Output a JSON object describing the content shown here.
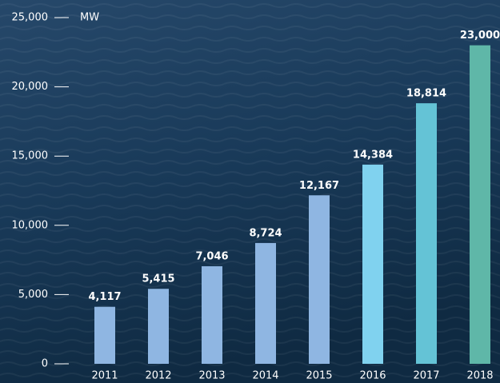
{
  "chart_data": {
    "type": "bar",
    "y_unit": "MW",
    "categories": [
      "2011",
      "2012",
      "2013",
      "2014",
      "2015",
      "2016",
      "2017",
      "2018"
    ],
    "values": [
      4117,
      5415,
      7046,
      8724,
      12167,
      14384,
      18814,
      23000
    ],
    "value_labels": [
      "4,117",
      "5,415",
      "7,046",
      "8,724",
      "12,167",
      "14,384",
      "18,814",
      "23,000"
    ],
    "colors": [
      "#8fb6e2",
      "#8fb6e2",
      "#8fb6e2",
      "#8fb6e2",
      "#8fb6e2",
      "#80d2ef",
      "#64c3d6",
      "#5fb7a8"
    ],
    "ylim": [
      0,
      25000
    ],
    "yticks": [
      {
        "value": 0,
        "label": "0"
      },
      {
        "value": 5000,
        "label": "5,000"
      },
      {
        "value": 10000,
        "label": "10,000"
      },
      {
        "value": 15000,
        "label": "15,000"
      },
      {
        "value": 20000,
        "label": "20,000"
      },
      {
        "value": 25000,
        "label": "25,000"
      }
    ]
  }
}
